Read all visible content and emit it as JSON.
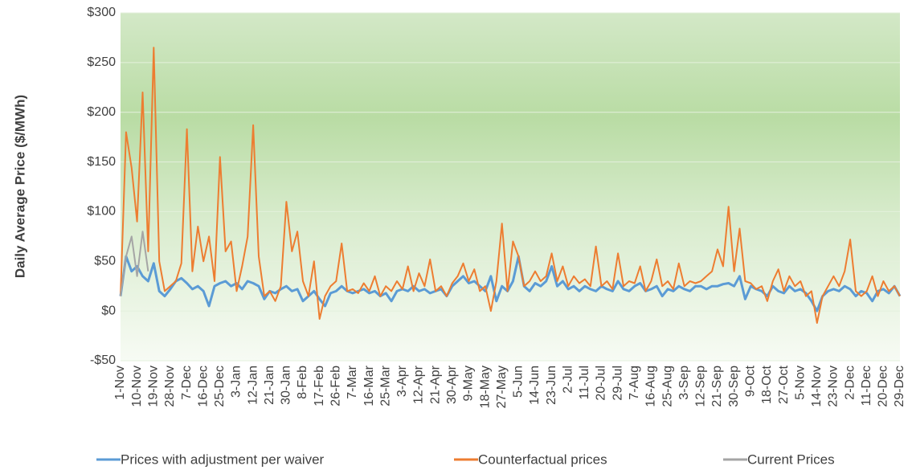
{
  "chart_data": {
    "type": "line",
    "ylabel": "Daily Average Price ($/MWh)",
    "categories": [
      "1-Nov",
      null,
      null,
      "10-Nov",
      null,
      null,
      "19-Nov",
      null,
      null,
      "28-Nov",
      null,
      null,
      "7-Dec",
      null,
      null,
      "16-Dec",
      null,
      null,
      "25-Dec",
      null,
      null,
      "3-Jan",
      null,
      null,
      "12-Jan",
      null,
      null,
      "21-Jan",
      null,
      null,
      "30-Jan",
      null,
      null,
      "8-Feb",
      null,
      null,
      "17-Feb",
      null,
      null,
      "26-Feb",
      null,
      null,
      "7-Mar",
      null,
      null,
      "16-Mar",
      null,
      null,
      "25-Mar",
      null,
      null,
      "3-Apr",
      null,
      null,
      "12-Apr",
      null,
      null,
      "21-Apr",
      null,
      null,
      "30-Apr",
      null,
      null,
      "9-May",
      null,
      null,
      "18-May",
      null,
      null,
      "27-May",
      null,
      null,
      "5-Jun",
      null,
      null,
      "14-Jun",
      null,
      null,
      "23-Jun",
      null,
      null,
      "2-Jul",
      null,
      null,
      "11-Jul",
      null,
      null,
      "20-Jul",
      null,
      null,
      "29-Jul",
      null,
      null,
      "7-Aug",
      null,
      null,
      "16-Aug",
      null,
      null,
      "25-Aug",
      null,
      null,
      "3-Sep",
      null,
      null,
      "12-Sep",
      null,
      null,
      "21-Sep",
      null,
      null,
      "30-Sep",
      null,
      null,
      "9-Oct",
      null,
      null,
      "18-Oct",
      null,
      null,
      "27-Oct",
      null,
      null,
      "5-Nov",
      null,
      null,
      "14-Nov",
      null,
      null,
      "23-Nov",
      null,
      null,
      "2-Dec",
      null,
      null,
      "11-Dec",
      null,
      null,
      "20-Dec",
      null,
      null,
      "29-Dec"
    ],
    "series": [
      {
        "name": "Prices with adjustment per waiver",
        "color": "#5b9bd5",
        "values": [
          15,
          55,
          40,
          45,
          35,
          30,
          48,
          20,
          15,
          22,
          30,
          33,
          28,
          22,
          25,
          20,
          5,
          25,
          28,
          30,
          25,
          28,
          22,
          30,
          28,
          25,
          12,
          20,
          18,
          22,
          25,
          20,
          22,
          10,
          15,
          20,
          12,
          5,
          18,
          20,
          25,
          20,
          18,
          20,
          22,
          18,
          20,
          15,
          18,
          10,
          20,
          22,
          20,
          25,
          20,
          22,
          18,
          20,
          22,
          15,
          25,
          30,
          35,
          28,
          30,
          25,
          20,
          35,
          10,
          25,
          20,
          30,
          55,
          25,
          20,
          28,
          25,
          30,
          45,
          25,
          30,
          22,
          25,
          20,
          25,
          22,
          20,
          25,
          22,
          20,
          30,
          22,
          20,
          25,
          28,
          20,
          22,
          25,
          15,
          22,
          20,
          25,
          22,
          20,
          25,
          25,
          22,
          25,
          25,
          27,
          28,
          25,
          35,
          12,
          25,
          22,
          20,
          15,
          25,
          20,
          18,
          25,
          20,
          22,
          18,
          10,
          0,
          15,
          20,
          22,
          20,
          25,
          22,
          15,
          20,
          18,
          10,
          20,
          22,
          18,
          25,
          15
        ]
      },
      {
        "name": "Counterfactual prices",
        "color": "#ed7d31",
        "values": [
          15,
          180,
          144,
          90,
          220,
          60,
          265,
          50,
          20,
          25,
          30,
          48,
          183,
          40,
          85,
          50,
          75,
          30,
          155,
          60,
          70,
          20,
          45,
          75,
          187,
          55,
          15,
          20,
          10,
          25,
          110,
          60,
          80,
          30,
          15,
          50,
          -8,
          15,
          25,
          30,
          68,
          20,
          22,
          18,
          28,
          20,
          35,
          15,
          25,
          20,
          30,
          22,
          45,
          20,
          38,
          25,
          52,
          20,
          25,
          15,
          28,
          35,
          48,
          30,
          42,
          20,
          25,
          0,
          30,
          88,
          20,
          70,
          55,
          25,
          30,
          40,
          30,
          35,
          58,
          30,
          45,
          25,
          35,
          28,
          32,
          25,
          65,
          25,
          30,
          22,
          58,
          25,
          30,
          28,
          45,
          20,
          30,
          52,
          25,
          30,
          22,
          48,
          25,
          30,
          28,
          30,
          35,
          40,
          62,
          45,
          105,
          40,
          83,
          30,
          28,
          22,
          25,
          10,
          30,
          42,
          20,
          35,
          25,
          30,
          15,
          20,
          -12,
          15,
          25,
          35,
          25,
          40,
          72,
          20,
          15,
          20,
          35,
          15,
          30,
          20,
          25,
          15
        ]
      },
      {
        "name": "Current Prices",
        "color": "#a5a5a5",
        "values": [
          15,
          55,
          75,
          35,
          80,
          40,
          null,
          null,
          null,
          null,
          null,
          null,
          null,
          null,
          null,
          null,
          null,
          null,
          null,
          null,
          null,
          null,
          null,
          null,
          null,
          null,
          null,
          null,
          null,
          null,
          null,
          null,
          null,
          null,
          null,
          null,
          null,
          null,
          null,
          null,
          null,
          null,
          null,
          null,
          null,
          null,
          null,
          null,
          null,
          null,
          null,
          null,
          null,
          null,
          null,
          null,
          null,
          null,
          null,
          null,
          null,
          null,
          null,
          null,
          null,
          null,
          null,
          null,
          null,
          null,
          null,
          null,
          null,
          null,
          null,
          null,
          null,
          null,
          null,
          null,
          null,
          null,
          null,
          null,
          null,
          null,
          null,
          null,
          null,
          null,
          null,
          null,
          null,
          null,
          null,
          null,
          null,
          null,
          null,
          null,
          null,
          null,
          null,
          null,
          null,
          null,
          null,
          null,
          null,
          null,
          null,
          null,
          null,
          null,
          null,
          null,
          null,
          null,
          null,
          null,
          null,
          null,
          null,
          null,
          null,
          null,
          null,
          null,
          null,
          null,
          null,
          null,
          null,
          null,
          null,
          null,
          null,
          null,
          null,
          null,
          null,
          null
        ]
      }
    ],
    "ylim": [
      -50,
      300
    ],
    "yticks": [
      {
        "value": -50,
        "label": "-$50"
      },
      {
        "value": 0,
        "label": "$0"
      },
      {
        "value": 50,
        "label": "$50"
      },
      {
        "value": 100,
        "label": "$100"
      },
      {
        "value": 150,
        "label": "$150"
      },
      {
        "value": 200,
        "label": "$200"
      },
      {
        "value": 250,
        "label": "$250"
      },
      {
        "value": 300,
        "label": "$300"
      }
    ],
    "grid": true,
    "legend": "bottom"
  }
}
